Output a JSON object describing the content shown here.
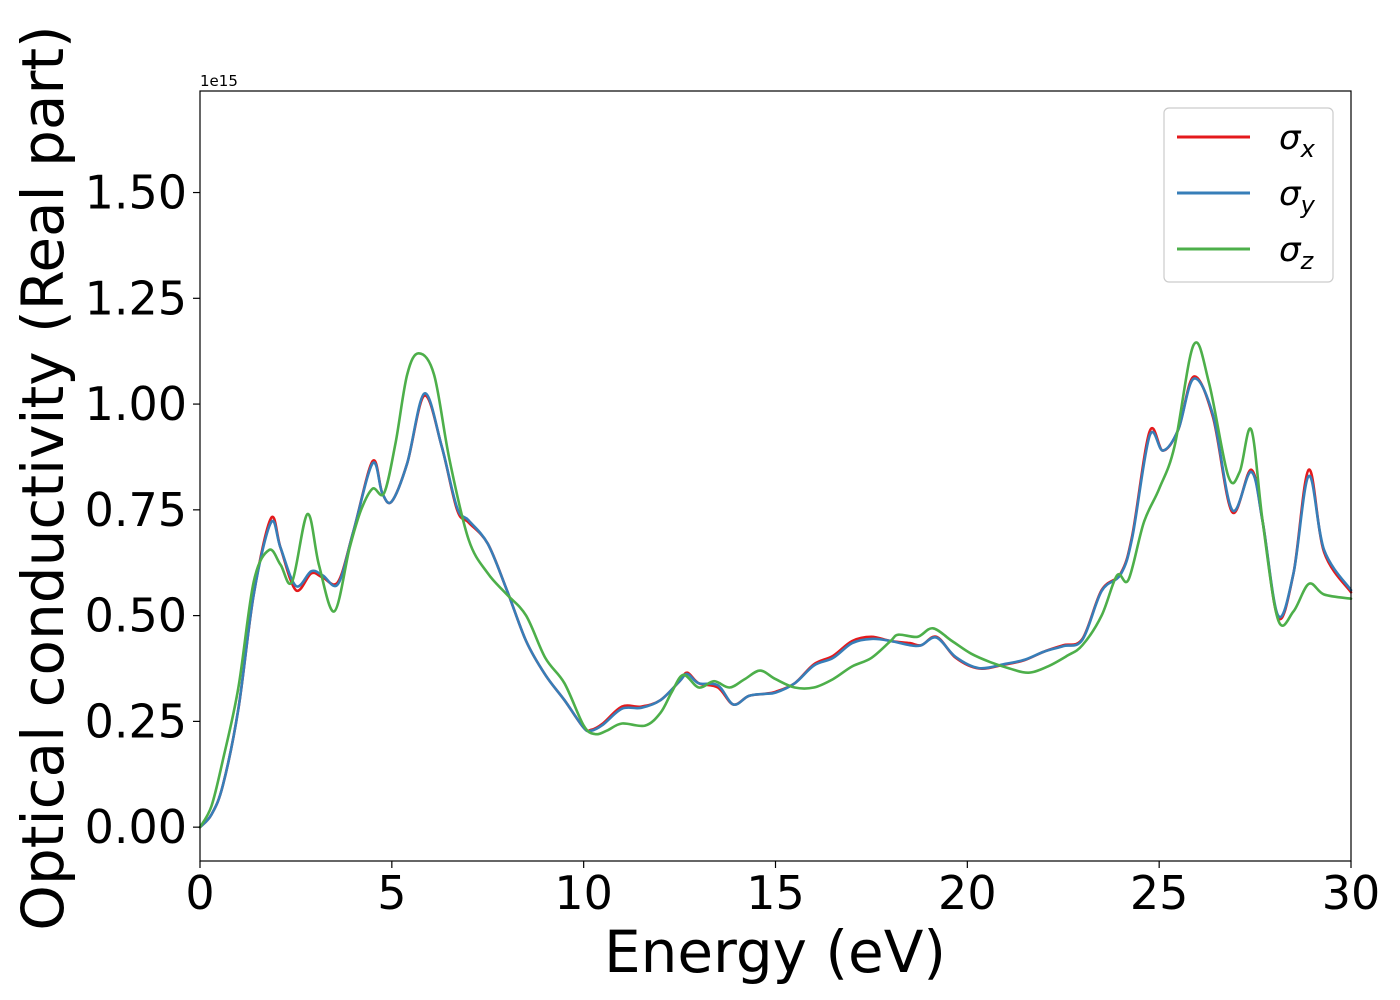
{
  "chart_data": {
    "type": "line",
    "xlabel": "Energy (eV)",
    "ylabel": "Optical conductivity (Real part)",
    "y_offset_label": "1e15",
    "xlim": [
      0,
      30
    ],
    "ylim": [
      -0.08,
      1.74
    ],
    "xticks": [
      0,
      5,
      10,
      15,
      20,
      25,
      30
    ],
    "xtick_labels": [
      "0",
      "5",
      "10",
      "15",
      "20",
      "25",
      "30"
    ],
    "yticks": [
      0.0,
      0.25,
      0.5,
      0.75,
      1.0,
      1.25,
      1.5
    ],
    "ytick_labels": [
      "0.00",
      "0.25",
      "0.50",
      "0.75",
      "1.00",
      "1.25",
      "1.50"
    ],
    "grid": false,
    "legend_position": "top-right",
    "series": [
      {
        "name": "σx",
        "legend": {
          "base": "σ",
          "sub": "x"
        },
        "color": "#e41a1c",
        "x": [
          0,
          0.3,
          0.6,
          1.0,
          1.4,
          1.85,
          2.1,
          2.5,
          2.9,
          3.2,
          3.6,
          4.0,
          4.5,
          4.75,
          5.0,
          5.4,
          5.85,
          6.3,
          6.7,
          7.0,
          7.5,
          8.0,
          8.5,
          9.0,
          9.5,
          10.0,
          10.2,
          10.5,
          11.0,
          11.5,
          12.0,
          12.5,
          12.7,
          13.0,
          13.5,
          13.9,
          14.3,
          14.7,
          15.0,
          15.5,
          16.0,
          16.5,
          17.0,
          17.5,
          18.0,
          18.5,
          18.8,
          19.2,
          19.7,
          20.3,
          21.0,
          21.5,
          22.0,
          22.5,
          23.0,
          23.5,
          24.0,
          24.3,
          24.75,
          25.1,
          25.5,
          25.9,
          26.4,
          26.9,
          27.4,
          27.7,
          28.1,
          28.5,
          28.9,
          29.3,
          30.0
        ],
        "y": [
          0.0,
          0.03,
          0.1,
          0.28,
          0.55,
          0.73,
          0.66,
          0.56,
          0.6,
          0.59,
          0.58,
          0.7,
          0.865,
          0.79,
          0.77,
          0.86,
          1.02,
          0.9,
          0.75,
          0.72,
          0.67,
          0.56,
          0.44,
          0.36,
          0.3,
          0.235,
          0.23,
          0.245,
          0.285,
          0.285,
          0.3,
          0.345,
          0.365,
          0.34,
          0.33,
          0.29,
          0.31,
          0.315,
          0.32,
          0.34,
          0.385,
          0.405,
          0.44,
          0.45,
          0.44,
          0.435,
          0.43,
          0.45,
          0.4,
          0.375,
          0.385,
          0.395,
          0.415,
          0.43,
          0.445,
          0.56,
          0.6,
          0.69,
          0.935,
          0.89,
          0.94,
          1.065,
          0.97,
          0.745,
          0.845,
          0.72,
          0.495,
          0.6,
          0.845,
          0.65,
          0.555
        ]
      },
      {
        "name": "σy",
        "legend": {
          "base": "σ",
          "sub": "y"
        },
        "color": "#377eb8",
        "x": [
          0,
          0.3,
          0.6,
          1.0,
          1.4,
          1.85,
          2.1,
          2.5,
          2.9,
          3.2,
          3.6,
          4.0,
          4.5,
          4.75,
          5.0,
          5.4,
          5.85,
          6.3,
          6.7,
          7.0,
          7.5,
          8.0,
          8.5,
          9.0,
          9.5,
          10.0,
          10.2,
          10.5,
          11.0,
          11.5,
          12.0,
          12.5,
          12.7,
          13.0,
          13.5,
          13.9,
          14.3,
          14.7,
          15.0,
          15.5,
          16.0,
          16.5,
          17.0,
          17.5,
          18.0,
          18.5,
          18.8,
          19.2,
          19.7,
          20.3,
          21.0,
          21.5,
          22.0,
          22.5,
          23.0,
          23.5,
          24.0,
          24.3,
          24.75,
          25.1,
          25.5,
          25.9,
          26.4,
          26.9,
          27.4,
          27.7,
          28.1,
          28.5,
          28.9,
          29.3,
          30.0
        ],
        "y": [
          0.0,
          0.03,
          0.1,
          0.28,
          0.55,
          0.72,
          0.66,
          0.57,
          0.605,
          0.595,
          0.575,
          0.7,
          0.86,
          0.79,
          0.77,
          0.86,
          1.025,
          0.9,
          0.755,
          0.725,
          0.67,
          0.56,
          0.44,
          0.36,
          0.3,
          0.235,
          0.228,
          0.242,
          0.28,
          0.282,
          0.3,
          0.345,
          0.362,
          0.34,
          0.335,
          0.29,
          0.31,
          0.315,
          0.318,
          0.34,
          0.382,
          0.4,
          0.435,
          0.445,
          0.44,
          0.43,
          0.43,
          0.448,
          0.402,
          0.376,
          0.386,
          0.396,
          0.415,
          0.428,
          0.443,
          0.558,
          0.598,
          0.685,
          0.925,
          0.89,
          0.94,
          1.06,
          0.975,
          0.75,
          0.84,
          0.72,
          0.5,
          0.6,
          0.83,
          0.655,
          0.56
        ]
      },
      {
        "name": "σz",
        "legend": {
          "base": "σ",
          "sub": "z"
        },
        "color": "#4daf4a",
        "x": [
          0,
          0.3,
          0.6,
          1.0,
          1.4,
          1.8,
          2.1,
          2.4,
          2.8,
          3.1,
          3.5,
          3.9,
          4.2,
          4.5,
          4.8,
          5.1,
          5.4,
          5.7,
          6.1,
          6.5,
          7.0,
          7.5,
          8.0,
          8.5,
          9.0,
          9.5,
          10.0,
          10.3,
          10.6,
          11.0,
          11.6,
          12.0,
          12.3,
          12.6,
          13.0,
          13.4,
          13.8,
          14.2,
          14.6,
          15.0,
          15.5,
          16.0,
          16.5,
          17.0,
          17.5,
          18.0,
          18.2,
          18.7,
          19.1,
          19.6,
          20.1,
          20.6,
          21.1,
          21.6,
          22.1,
          22.6,
          23.0,
          23.5,
          23.9,
          24.2,
          24.6,
          25.0,
          25.4,
          25.9,
          26.3,
          26.8,
          27.1,
          27.4,
          27.7,
          28.1,
          28.5,
          28.9,
          29.3,
          30.0
        ],
        "y": [
          0.0,
          0.05,
          0.16,
          0.33,
          0.58,
          0.655,
          0.62,
          0.58,
          0.74,
          0.62,
          0.51,
          0.66,
          0.75,
          0.8,
          0.79,
          0.91,
          1.07,
          1.12,
          1.07,
          0.87,
          0.68,
          0.6,
          0.55,
          0.5,
          0.4,
          0.34,
          0.24,
          0.22,
          0.228,
          0.245,
          0.24,
          0.27,
          0.32,
          0.36,
          0.33,
          0.345,
          0.33,
          0.35,
          0.37,
          0.35,
          0.33,
          0.33,
          0.35,
          0.38,
          0.4,
          0.44,
          0.455,
          0.45,
          0.47,
          0.44,
          0.41,
          0.39,
          0.375,
          0.365,
          0.38,
          0.405,
          0.43,
          0.5,
          0.595,
          0.585,
          0.72,
          0.8,
          0.9,
          1.14,
          1.05,
          0.83,
          0.84,
          0.94,
          0.72,
          0.49,
          0.51,
          0.575,
          0.55,
          0.54
        ]
      }
    ]
  }
}
